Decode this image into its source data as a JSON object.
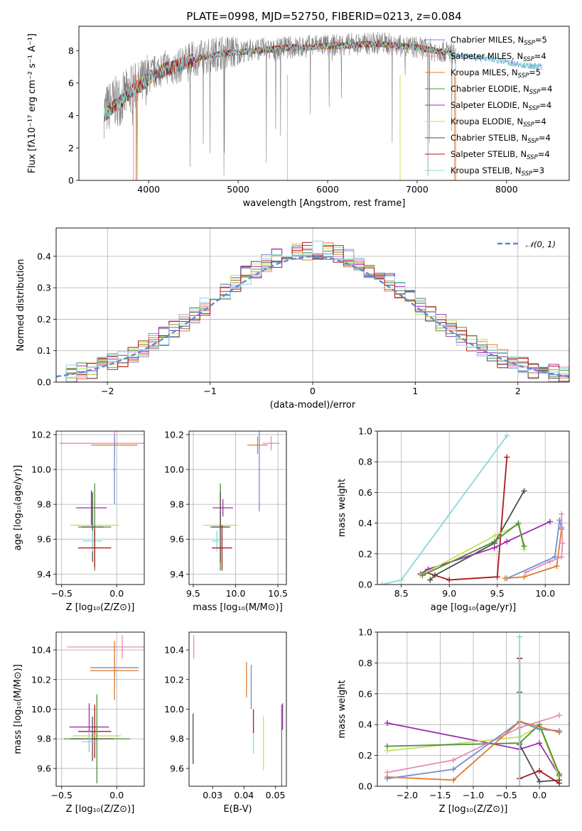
{
  "chart_data": [
    {
      "id": "spectrum",
      "type": "line",
      "title": "PLATE=0998, MJD=52750, FIBERID=0213, z=0.084",
      "xlabel": "wavelength [Angstrom, rest frame]",
      "ylabel": "Flux [fλ10⁻¹⁷ erg cm⁻² s⁻¹ A⁻¹]",
      "xlim": [
        3220,
        8700
      ],
      "ylim": [
        0,
        9.5
      ],
      "xticks": [
        4000,
        5000,
        6000,
        7000,
        8000
      ],
      "yticks": [
        0,
        2,
        4,
        6,
        8
      ],
      "grid": false,
      "legend_position": "top-right",
      "observed": {
        "x": [
          3500,
          3600,
          3700,
          3800,
          3900,
          4000,
          4100,
          4200,
          4300,
          4400,
          4500,
          4600,
          4700,
          4800,
          4900,
          5000,
          5100,
          5200,
          5300,
          5400,
          5500,
          5600,
          5700,
          5800,
          5900,
          6000,
          6200,
          6400,
          6600,
          6800,
          7000,
          7200,
          7400
        ],
        "y": [
          4.2,
          4.8,
          5.0,
          5.6,
          5.8,
          6.4,
          6.8,
          7.0,
          6.9,
          7.3,
          7.5,
          7.6,
          7.7,
          7.9,
          7.9,
          7.9,
          8.0,
          8.1,
          8.1,
          8.0,
          8.2,
          8.2,
          8.2,
          8.3,
          8.4,
          8.3,
          8.4,
          8.4,
          8.5,
          8.3,
          8.2,
          8.0,
          7.9
        ]
      },
      "model": {
        "x": [
          3500,
          3600,
          3700,
          3800,
          3900,
          4000,
          4100,
          4200,
          4300,
          4400,
          4500,
          4600,
          4800,
          5000,
          5200,
          5400,
          5600,
          5800,
          6000,
          6200,
          6400,
          6600,
          6800,
          7000,
          7200,
          7400,
          7600,
          7800,
          8000,
          8200,
          8400
        ],
        "y": [
          4.0,
          4.5,
          4.9,
          5.5,
          5.8,
          6.3,
          6.6,
          6.9,
          7.0,
          7.3,
          7.4,
          7.6,
          7.8,
          7.9,
          8.0,
          8.1,
          8.2,
          8.2,
          8.3,
          8.3,
          8.4,
          8.4,
          8.3,
          8.2,
          8.0,
          7.8,
          7.6,
          7.5,
          7.3,
          7.1,
          7.0
        ]
      },
      "series": [
        {
          "name": "Chabrier MILES, N",
          "sub": "SSP",
          "suffix": "=5",
          "color": "#6f8fd6"
        },
        {
          "name": "Salpeter MILES, N",
          "sub": "SSP",
          "suffix": "=4",
          "color": "#e88ab8"
        },
        {
          "name": "Kroupa MILES, N",
          "sub": "SSP",
          "suffix": "=5",
          "color": "#e07a2e"
        },
        {
          "name": "Chabrier ELODIE, N",
          "sub": "SSP",
          "suffix": "=4",
          "color": "#4f8f3c"
        },
        {
          "name": "Salpeter ELODIE, N",
          "sub": "SSP",
          "suffix": "=4",
          "color": "#9c2fb0"
        },
        {
          "name": "Kroupa ELODIE, N",
          "sub": "SSP",
          "suffix": "=4",
          "color": "#c6e05a"
        },
        {
          "name": "Chabrier STELIB, N",
          "sub": "SSP",
          "suffix": "=4",
          "color": "#4d4d4d"
        },
        {
          "name": "Salpeter STELIB, N",
          "sub": "SSP",
          "suffix": "=4",
          "color": "#b01818"
        },
        {
          "name": "Kroupa STELIB, N",
          "sub": "SSP",
          "suffix": "=3",
          "color": "#86d8dd"
        }
      ]
    },
    {
      "id": "residuals",
      "type": "line",
      "xlabel": "(data-model)/error",
      "ylabel": "Normed distribution",
      "xlim": [
        -2.5,
        2.5
      ],
      "ylim": [
        0,
        0.49
      ],
      "xticks": [
        -2,
        -1,
        0,
        1,
        2
      ],
      "yticks": [
        0.0,
        0.1,
        0.2,
        0.3,
        0.4
      ],
      "grid": true,
      "legend_position": "top-right",
      "reference": {
        "name": "𝒩(0, 1)",
        "color": "#5b8bd6",
        "mean": 0,
        "sigma": 1
      },
      "bin_width": 0.1
    },
    {
      "id": "age-vs-z",
      "type": "scatter",
      "xlabel": "Z [log₁₀(Z/Z⊙)]",
      "ylabel": "age  [log₁₀(age/yr)]",
      "xlim": [
        -0.55,
        0.25
      ],
      "ylim": [
        9.34,
        10.22
      ],
      "xticks": [
        -0.5,
        0.0
      ],
      "yticks": [
        9.4,
        9.6,
        9.8,
        10.0,
        10.2
      ],
      "grid": true,
      "points": [
        {
          "x": -0.02,
          "y": 10.15,
          "xerr": 0.5,
          "yerr": 0.08,
          "color": "#e88ab8"
        },
        {
          "x": -0.02,
          "y": 10.14,
          "xerr": 0.21,
          "yerr": 0.04,
          "color": "#e07a2e"
        },
        {
          "x": -0.02,
          "y": 10.0,
          "xerr": 0.015,
          "yerr": 0.2,
          "color": "#6f8fd6"
        },
        {
          "x": -0.23,
          "y": 9.78,
          "xerr": 0.14,
          "yerr": 0.1,
          "color": "#9c2fb0"
        },
        {
          "x": -0.2,
          "y": 9.68,
          "xerr": 0.22,
          "yerr": 0.2,
          "color": "#c6e05a"
        },
        {
          "x": -0.2,
          "y": 9.67,
          "xerr": 0.15,
          "yerr": 0.25,
          "color": "#4f8f3c"
        },
        {
          "x": -0.22,
          "y": 9.67,
          "xerr": 0.1,
          "yerr": 0.2,
          "color": "#4d4d4d"
        },
        {
          "x": -0.22,
          "y": 9.59,
          "xerr": 0.09,
          "yerr": 0.06,
          "color": "#86d8dd"
        },
        {
          "x": -0.2,
          "y": 9.55,
          "xerr": 0.15,
          "yerr": 0.11,
          "color": "#b01818"
        }
      ]
    },
    {
      "id": "age-vs-mass",
      "type": "scatter",
      "xlabel": "mass [log₁₀(M/M⊙)]",
      "xlim": [
        9.45,
        10.6
      ],
      "ylim": [
        9.34,
        10.22
      ],
      "xticks": [
        9.5,
        10.0,
        10.5
      ],
      "yticks": [
        9.4,
        9.6,
        9.8,
        10.0,
        10.2
      ],
      "grid": true,
      "points": [
        {
          "x": 10.42,
          "y": 10.15,
          "xerr": 0.1,
          "yerr": 0.04,
          "color": "#e88ab8"
        },
        {
          "x": 10.26,
          "y": 10.14,
          "xerr": 0.12,
          "yerr": 0.05,
          "color": "#e07a2e"
        },
        {
          "x": 10.28,
          "y": 10.0,
          "xerr": 0.01,
          "yerr": 0.24,
          "color": "#6f8fd6"
        },
        {
          "x": 9.85,
          "y": 9.78,
          "xerr": 0.12,
          "yerr": 0.05,
          "color": "#9c2fb0"
        },
        {
          "x": 9.82,
          "y": 9.68,
          "xerr": 0.2,
          "yerr": 0.23,
          "color": "#c6e05a"
        },
        {
          "x": 9.82,
          "y": 9.67,
          "xerr": 0.12,
          "yerr": 0.25,
          "color": "#4f8f3c"
        },
        {
          "x": 9.82,
          "y": 9.67,
          "xerr": 0.1,
          "yerr": 0.2,
          "color": "#4d4d4d"
        },
        {
          "x": 9.78,
          "y": 9.59,
          "xerr": 0.06,
          "yerr": 0.06,
          "color": "#86d8dd"
        },
        {
          "x": 9.84,
          "y": 9.55,
          "xerr": 0.12,
          "yerr": 0.13,
          "color": "#b01818"
        }
      ]
    },
    {
      "id": "mass-weight-vs-age",
      "type": "line",
      "xlabel": "age  [log₁₀(age/yr)]",
      "ylabel": "mass weight",
      "xlim": [
        8.25,
        10.25
      ],
      "ylim": [
        0,
        1.0
      ],
      "xticks": [
        8.5,
        9.0,
        9.5,
        10.0
      ],
      "yticks": [
        0.0,
        0.2,
        0.4,
        0.6,
        0.8,
        1.0
      ],
      "grid": true,
      "series": [
        {
          "color": "#86d8dd",
          "x": [
            8.3,
            8.5,
            9.6
          ],
          "y": [
            0.0,
            0.03,
            0.97
          ]
        },
        {
          "color": "#b01818",
          "x": [
            8.75,
            9.0,
            9.5,
            9.6
          ],
          "y": [
            0.08,
            0.03,
            0.05,
            0.83
          ]
        },
        {
          "color": "#4d4d4d",
          "x": [
            8.8,
            8.85,
            9.47,
            9.78
          ],
          "y": [
            0.03,
            0.06,
            0.27,
            0.61
          ]
        },
        {
          "color": "#9c2fb0",
          "x": [
            8.7,
            8.78,
            9.47,
            9.6,
            10.05
          ],
          "y": [
            0.07,
            0.1,
            0.24,
            0.28,
            0.41
          ]
        },
        {
          "color": "#c6e05a",
          "x": [
            8.7,
            9.48,
            9.72,
            9.78
          ],
          "y": [
            0.06,
            0.32,
            0.39,
            0.23
          ]
        },
        {
          "color": "#4f8f3c",
          "x": [
            8.72,
            9.47,
            9.72,
            9.78
          ],
          "y": [
            0.06,
            0.28,
            0.4,
            0.25
          ]
        },
        {
          "color": "#6f8fd6",
          "x": [
            9.6,
            10.1,
            10.15,
            10.17
          ],
          "y": [
            0.04,
            0.18,
            0.42,
            0.37
          ]
        },
        {
          "color": "#e07a2e",
          "x": [
            9.58,
            9.78,
            10.12,
            10.17
          ],
          "y": [
            0.04,
            0.05,
            0.12,
            0.36
          ]
        },
        {
          "color": "#e88ab8",
          "x": [
            9.8,
            10.05,
            10.17,
            10.18,
            10.17
          ],
          "y": [
            0.08,
            0.15,
            0.18,
            0.27,
            0.46
          ]
        }
      ]
    },
    {
      "id": "mass-vs-z",
      "type": "scatter",
      "xlabel": "Z [log₁₀(Z/Z⊙)]",
      "ylabel": "mass [log₁₀(M/M⊙)]",
      "xlim": [
        -0.55,
        0.25
      ],
      "ylim": [
        9.48,
        10.52
      ],
      "xticks": [
        -0.5,
        0.0
      ],
      "yticks": [
        9.6,
        9.8,
        10.0,
        10.2,
        10.4
      ],
      "grid": true,
      "points": [
        {
          "x": 0.05,
          "y": 10.42,
          "xerr": 0.5,
          "yerr": 0.08,
          "color": "#e88ab8"
        },
        {
          "x": -0.02,
          "y": 10.28,
          "xerr": 0.22,
          "yerr": 0.05,
          "color": "#6f8fd6"
        },
        {
          "x": -0.02,
          "y": 10.26,
          "xerr": 0.22,
          "yerr": 0.2,
          "color": "#e07a2e"
        },
        {
          "x": -0.25,
          "y": 9.88,
          "xerr": 0.18,
          "yerr": 0.16,
          "color": "#9c2fb0"
        },
        {
          "x": -0.2,
          "y": 9.85,
          "xerr": 0.15,
          "yerr": 0.18,
          "color": "#b01818"
        },
        {
          "x": -0.18,
          "y": 9.82,
          "xerr": 0.22,
          "yerr": 0.15,
          "color": "#c6e05a"
        },
        {
          "x": -0.18,
          "y": 9.8,
          "xerr": 0.3,
          "yerr": 0.3,
          "color": "#4f8f3c"
        },
        {
          "x": -0.22,
          "y": 9.8,
          "xerr": 0.2,
          "yerr": 0.15,
          "color": "#4d4d4d"
        },
        {
          "x": -0.25,
          "y": 9.78,
          "xerr": 0.07,
          "yerr": 0.07,
          "color": "#86d8dd"
        }
      ]
    },
    {
      "id": "mass-vs-ebv",
      "type": "scatter",
      "xlabel": "E(B-V)",
      "xlim": [
        0.0225,
        0.0535
      ],
      "ylim": [
        9.48,
        10.52
      ],
      "xticks": [
        0.03,
        0.04,
        0.05
      ],
      "yticks": [
        9.6,
        9.8,
        10.0,
        10.2,
        10.4
      ],
      "grid": false,
      "points": [
        {
          "x": 0.0238,
          "y": 9.8,
          "yerr": 0.17,
          "color": "#4d4d4d"
        },
        {
          "x": 0.024,
          "y": 10.42,
          "yerr": 0.08,
          "color": "#e88ab8"
        },
        {
          "x": 0.0408,
          "y": 10.2,
          "yerr": 0.12,
          "color": "#e07a2e"
        },
        {
          "x": 0.0423,
          "y": 10.15,
          "yerr": 0.15,
          "color": "#6f8fd6"
        },
        {
          "x": 0.043,
          "y": 9.78,
          "yerr": 0.08,
          "color": "#86d8dd"
        },
        {
          "x": 0.043,
          "y": 9.92,
          "yerr": 0.08,
          "color": "#b01818"
        },
        {
          "x": 0.0462,
          "y": 9.77,
          "yerr": 0.18,
          "color": "#c6e05a"
        },
        {
          "x": 0.052,
          "y": 9.75,
          "yerr": 0.28,
          "color": "#4f8f3c"
        },
        {
          "x": 0.0523,
          "y": 9.95,
          "yerr": 0.09,
          "color": "#9c2fb0"
        }
      ]
    },
    {
      "id": "mass-weight-vs-z",
      "type": "line",
      "xlabel": "Z [log₁₀(Z/Z⊙)]",
      "ylabel": "mass weight",
      "xlim": [
        -2.45,
        0.45
      ],
      "ylim": [
        0,
        1.0
      ],
      "xticks": [
        -2.0,
        -1.5,
        -1.0,
        -0.5,
        0.0
      ],
      "yticks": [
        0.0,
        0.2,
        0.4,
        0.6,
        0.8,
        1.0
      ],
      "grid": true,
      "series": [
        {
          "color": "#9c2fb0",
          "x": [
            -2.3,
            -0.3,
            0.0,
            0.3
          ],
          "y": [
            0.41,
            0.24,
            0.28,
            0.07
          ]
        },
        {
          "color": "#c6e05a",
          "x": [
            -2.3,
            -0.3,
            0.0,
            0.3
          ],
          "y": [
            0.23,
            0.32,
            0.39,
            0.06
          ]
        },
        {
          "color": "#4f8f3c",
          "x": [
            -2.3,
            -0.3,
            0.0,
            0.3
          ],
          "y": [
            0.26,
            0.28,
            0.4,
            0.08
          ]
        },
        {
          "color": "#e88ab8",
          "x": [
            -2.3,
            -1.3,
            -0.3,
            0.3
          ],
          "y": [
            0.09,
            0.17,
            0.38,
            0.46
          ]
        },
        {
          "color": "#6f8fd6",
          "x": [
            -2.3,
            -1.3,
            -0.3,
            0.0,
            0.3
          ],
          "y": [
            0.05,
            0.11,
            0.42,
            0.37,
            0.36
          ]
        },
        {
          "color": "#e07a2e",
          "x": [
            -2.3,
            -1.3,
            -0.3,
            0.3
          ],
          "y": [
            0.06,
            0.04,
            0.42,
            0.35
          ]
        },
        {
          "color": "#4d4d4d",
          "x": [
            -0.3,
            -0.3,
            -0.3,
            0.0,
            0.3
          ],
          "y": [
            0.61,
            0.83,
            0.27,
            0.03,
            0.04
          ]
        },
        {
          "color": "#b01818",
          "x": [
            -0.3,
            -0.3,
            0.0,
            0.3
          ],
          "y": [
            0.83,
            0.05,
            0.1,
            0.02
          ]
        },
        {
          "color": "#86d8dd",
          "x": [
            -0.3,
            -0.3
          ],
          "y": [
            0.97,
            0.0
          ]
        }
      ]
    }
  ]
}
